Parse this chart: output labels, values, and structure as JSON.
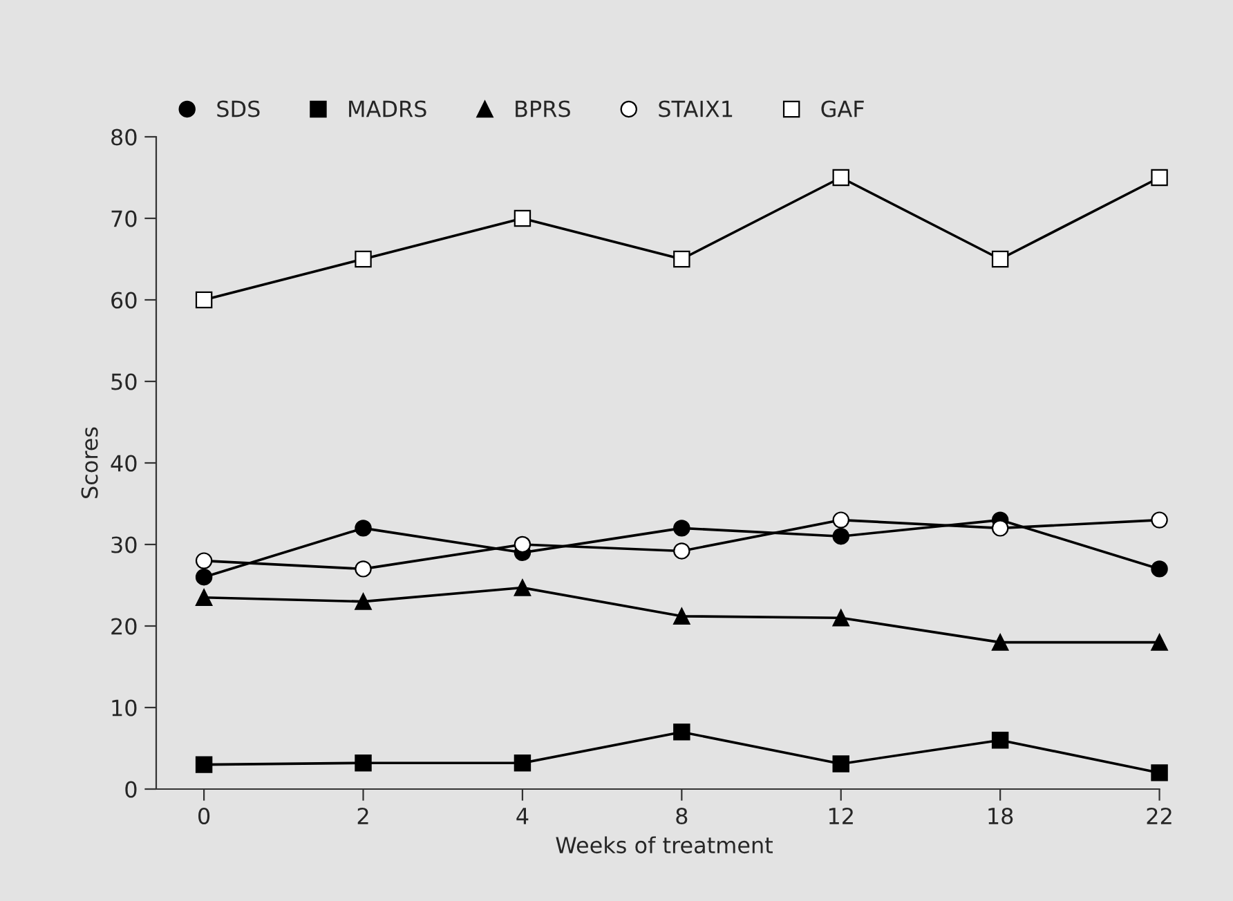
{
  "chart_data": {
    "type": "line",
    "xlabel": "Weeks of treatment",
    "ylabel": "Scores",
    "categories": [
      "0",
      "2",
      "4",
      "8",
      "12",
      "18",
      "22"
    ],
    "series": [
      {
        "name": "SDS",
        "color": "#000000",
        "marker": "circle",
        "values": [
          26,
          32,
          29,
          32,
          31,
          33,
          27
        ]
      },
      {
        "name": "MADRS",
        "color": "#000000",
        "marker": "square",
        "values": [
          3,
          3.2,
          3.2,
          7,
          3.1,
          6,
          2
        ]
      },
      {
        "name": "BPRS",
        "color": "#000000",
        "marker": "triangle",
        "values": [
          23.5,
          23,
          24.7,
          21.2,
          21,
          18,
          18
        ]
      },
      {
        "name": "STAIX1",
        "color": "#000000",
        "marker": "circle",
        "values": [
          28,
          27,
          30,
          29.2,
          33,
          32,
          33
        ]
      },
      {
        "name": "GAF",
        "color": "#000000",
        "marker": "square",
        "values": [
          60,
          65,
          70,
          65,
          75,
          65,
          75
        ]
      }
    ],
    "ylim": [
      0,
      80
    ],
    "yticks": [
      0,
      10,
      20,
      30,
      40,
      50,
      60,
      70,
      80
    ],
    "grid": false,
    "legend": "top left",
    "line_style": "solid"
  }
}
